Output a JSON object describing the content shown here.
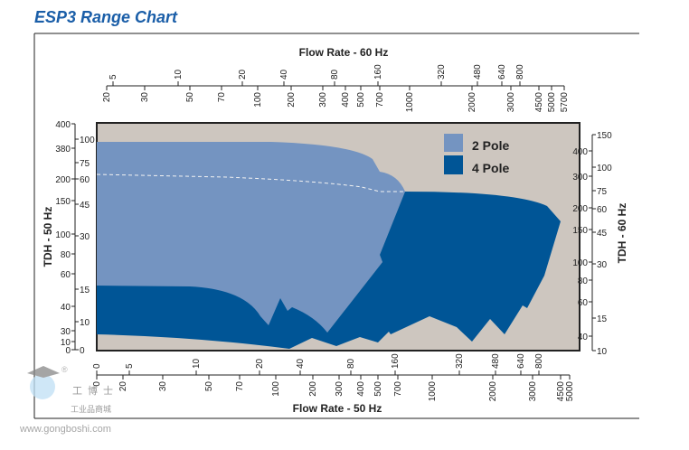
{
  "title": "ESP3 Range Chart",
  "colors": {
    "title": "#1a5ea8",
    "background": "#cdc6bf",
    "two_pole": "#7494c1",
    "four_pole": "#005596"
  },
  "watermark": {
    "brand": "工博士",
    "subtitle": "工业品商城",
    "url": "www.gongboshi.com",
    "reg": "®"
  },
  "chart_data": {
    "type": "area",
    "title": "ESP3 Range Chart",
    "legend": {
      "position": "top-right",
      "entries": [
        "2 Pole",
        "4 Pole"
      ]
    },
    "top_axis": {
      "label": "Flow Rate - 60 Hz",
      "upper_ticks": [
        "5",
        "10",
        "20",
        "40",
        "80",
        "160",
        "320",
        "480",
        "640",
        "800"
      ],
      "lower_ticks": [
        "20",
        "30",
        "50",
        "70",
        "100",
        "200",
        "300",
        "400",
        "500",
        "700",
        "1000",
        "2000",
        "3000",
        "4500",
        "5000",
        "5700"
      ]
    },
    "bottom_axis": {
      "label": "Flow Rate - 50 Hz",
      "upper_ticks": [
        "0",
        "5",
        "10",
        "20",
        "40",
        "80",
        "160",
        "320",
        "480",
        "640",
        "800"
      ],
      "lower_ticks": [
        "0",
        "20",
        "30",
        "50",
        "70",
        "100",
        "200",
        "300",
        "400",
        "500",
        "700",
        "1000",
        "2000",
        "3000",
        "4500",
        "5000"
      ]
    },
    "left_axis": {
      "label": "TDH - 50 Hz",
      "outer_ticks": [
        "400",
        "380",
        "200",
        "150",
        "100",
        "80",
        "60",
        "40",
        "30",
        "10",
        "0"
      ],
      "inner_ticks": [
        "100",
        "75",
        "60",
        "45",
        "30",
        "15",
        "10",
        "0"
      ]
    },
    "right_axis": {
      "label": "TDH - 60 Hz",
      "outer_ticks": [
        "400",
        "300",
        "200",
        "150",
        "100",
        "80",
        "60",
        "40"
      ],
      "inner_ticks": [
        "150",
        "100",
        "75",
        "60",
        "45",
        "30",
        "15",
        "10"
      ]
    }
  }
}
